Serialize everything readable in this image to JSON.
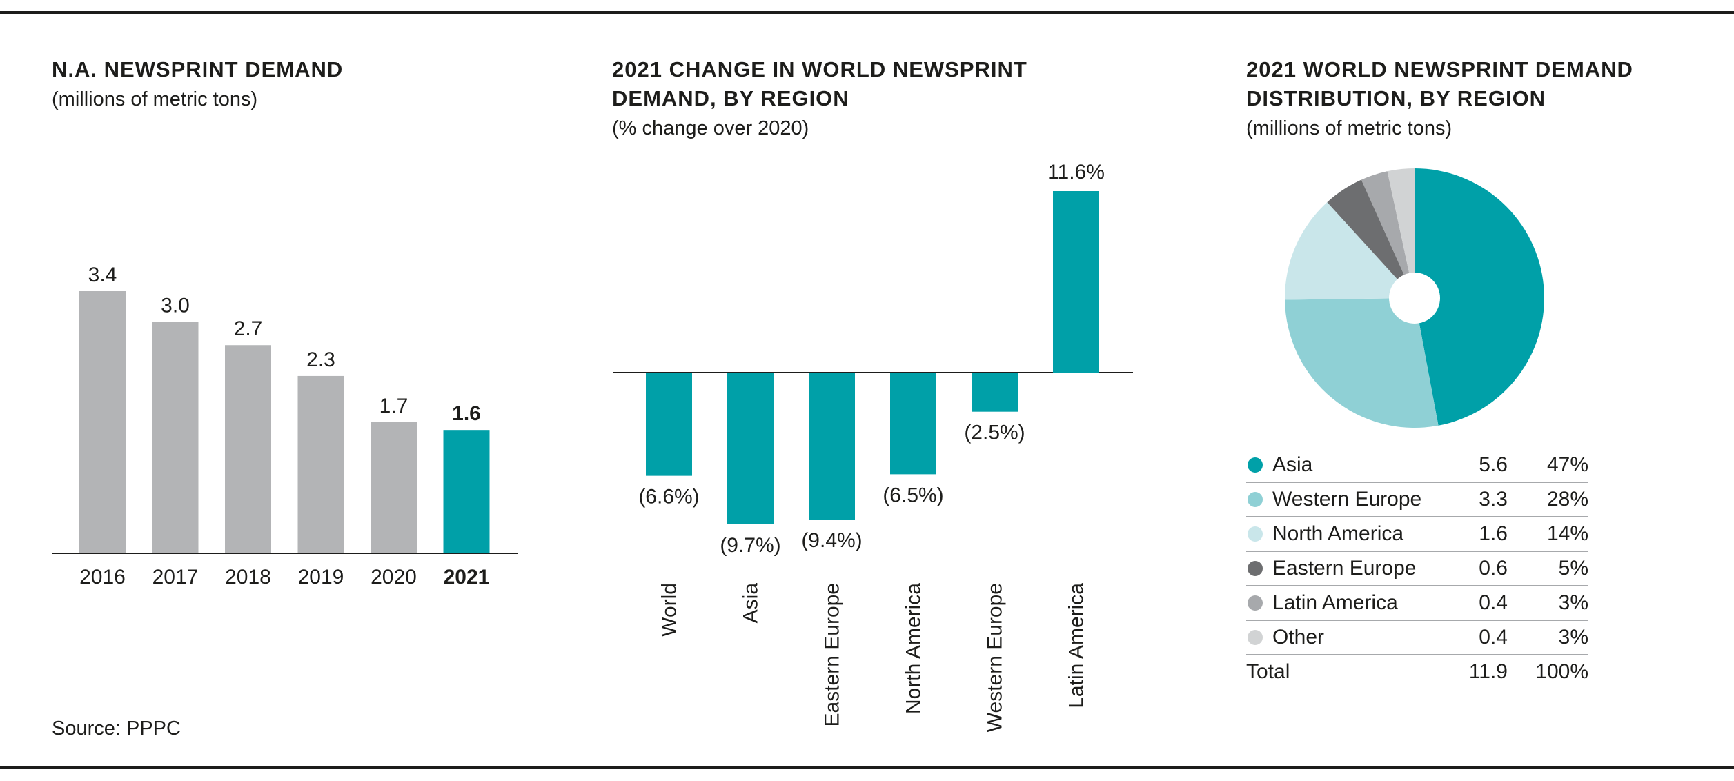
{
  "panels": {
    "na_demand": {
      "title": "N.A. NEWSPRINT DEMAND",
      "subtitle": "(millions of metric tons)"
    },
    "change_by_region": {
      "title_line1": "2021 CHANGE IN WORLD NEWSPRINT",
      "title_line2": "DEMAND, BY REGION",
      "subtitle": "(% change over 2020)"
    },
    "distribution": {
      "title_line1": "2021 WORLD NEWSPRINT DEMAND",
      "title_line2": "DISTRIBUTION, BY REGION",
      "subtitle": "(millions of metric tons)"
    }
  },
  "source": "Source: PPPC",
  "colors": {
    "highlight": "#00a0a8",
    "neutral_bar": "#b3b4b6",
    "axis": "#1d1d1b"
  },
  "chart_data": [
    {
      "type": "bar",
      "categories": [
        "2016",
        "2017",
        "2018",
        "2019",
        "2020",
        "2021"
      ],
      "values": [
        3.4,
        3.0,
        2.7,
        2.3,
        1.7,
        1.6
      ],
      "value_labels": [
        "3.4",
        "3.0",
        "2.7",
        "2.3",
        "1.7",
        "1.6"
      ],
      "highlight_category": "2021",
      "title": "N.A. NEWSPRINT DEMAND",
      "subtitle": "(millions of metric tons)",
      "ylim": [
        0,
        3.4
      ],
      "grid": false
    },
    {
      "type": "bar",
      "categories": [
        "World",
        "Asia",
        "Eastern Europe",
        "North America",
        "Western Europe",
        "Latin America"
      ],
      "values": [
        -6.6,
        -9.7,
        -9.4,
        -6.5,
        -2.5,
        11.6
      ],
      "value_labels": [
        "(6.6%)",
        "(9.7%)",
        "(9.4%)",
        "(6.5%)",
        "(2.5%)",
        "11.6%"
      ],
      "title": "2021 CHANGE IN WORLD NEWSPRINT DEMAND, BY REGION",
      "subtitle": "(% change over 2020)",
      "ylim": [
        -9.7,
        11.6
      ],
      "grid": false
    },
    {
      "type": "pie",
      "donut": true,
      "title": "2021 WORLD NEWSPRINT DEMAND DISTRIBUTION, BY REGION",
      "subtitle": "(millions of metric tons)",
      "slices": [
        {
          "label": "Asia",
          "value": 5.6,
          "percent": "47%",
          "color": "#00a0a8"
        },
        {
          "label": "Western Europe",
          "value": 3.3,
          "percent": "28%",
          "color": "#8fd0d5"
        },
        {
          "label": "North America",
          "value": 1.6,
          "percent": "14%",
          "color": "#c9e6ea"
        },
        {
          "label": "Eastern Europe",
          "value": 0.6,
          "percent": "5%",
          "color": "#6d6e70"
        },
        {
          "label": "Latin America",
          "value": 0.4,
          "percent": "3%",
          "color": "#a7a9ac"
        },
        {
          "label": "Other",
          "value": 0.4,
          "percent": "3%",
          "color": "#d1d3d4"
        }
      ],
      "total": {
        "label": "Total",
        "value": "11.9",
        "percent": "100%"
      }
    }
  ]
}
